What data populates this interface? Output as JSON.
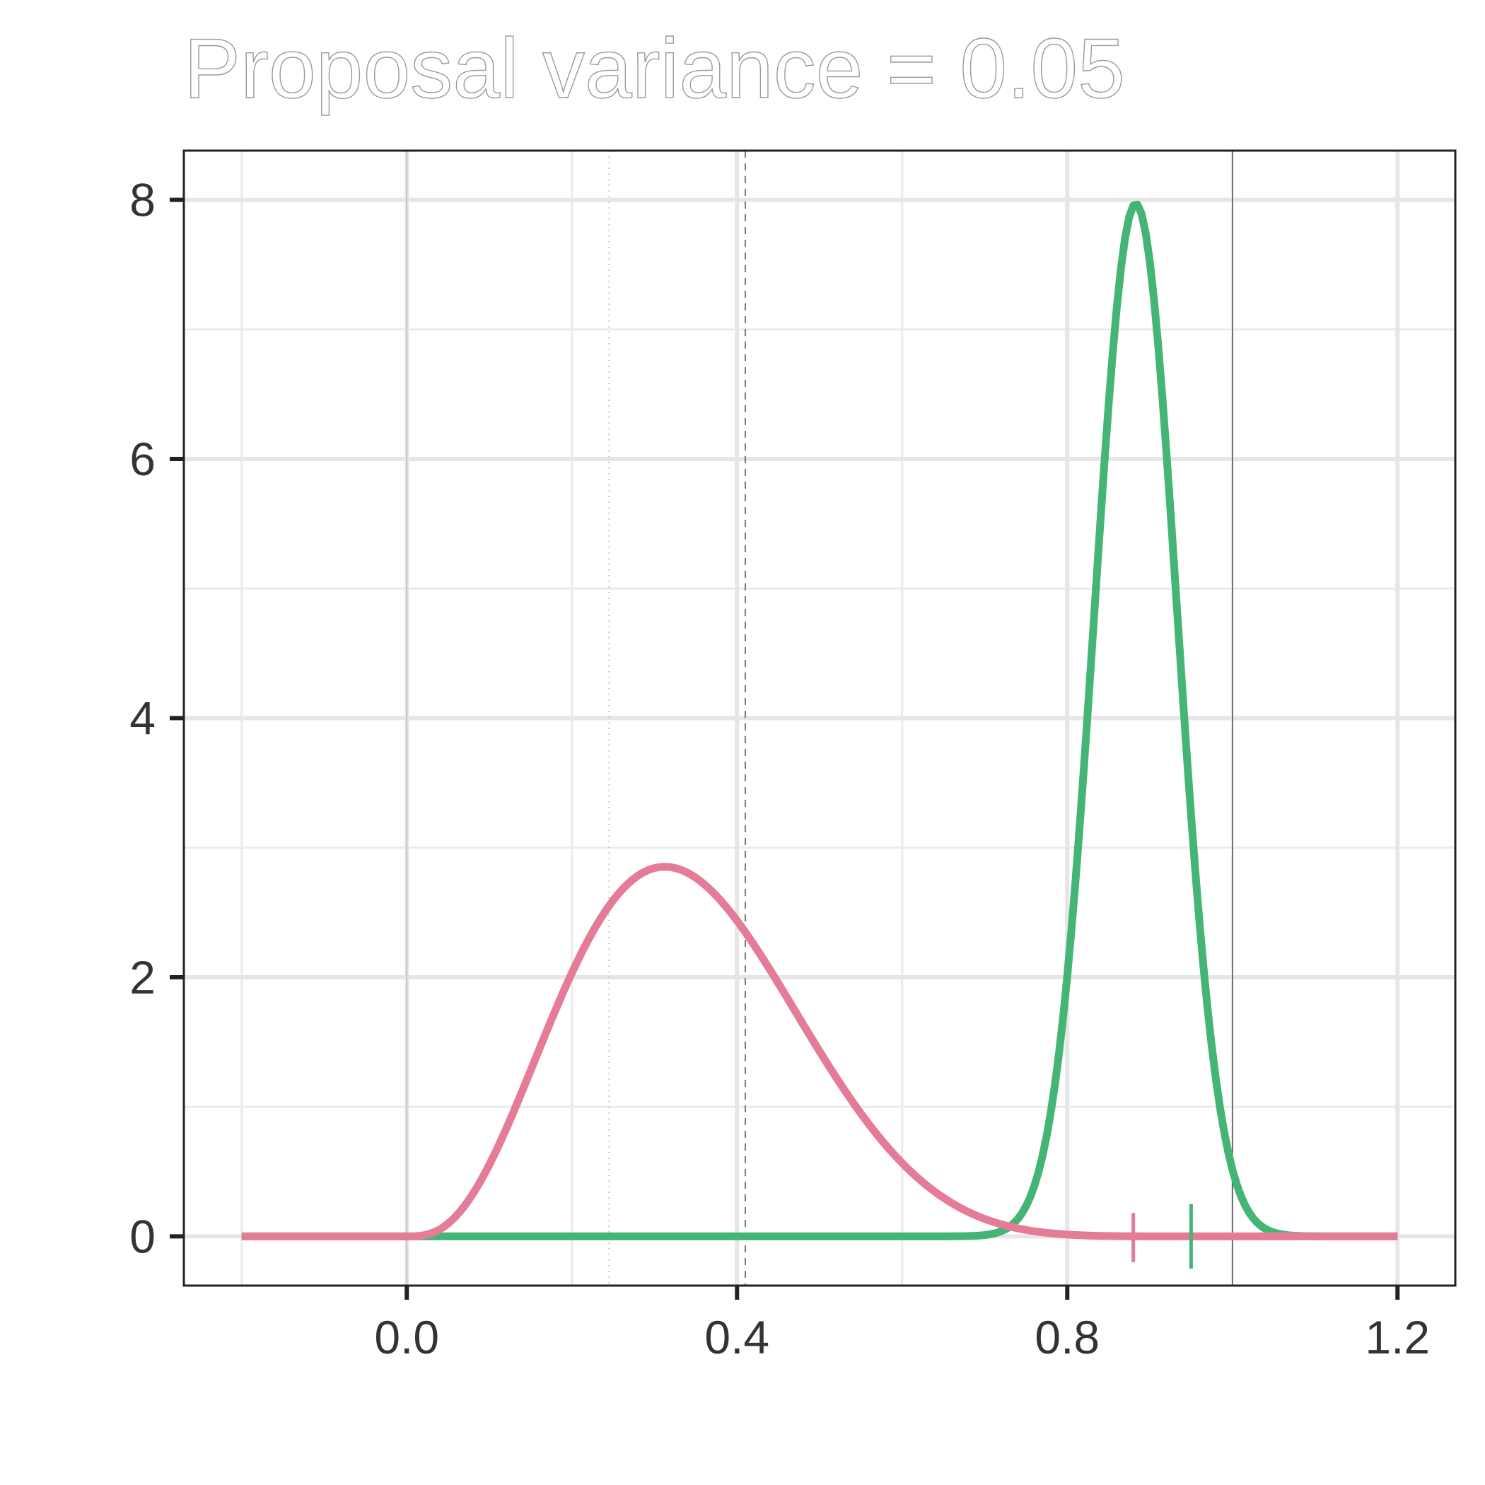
{
  "chart_data": {
    "type": "line",
    "title": "Proposal variance = 0.05",
    "xlabel": "",
    "ylabel": "",
    "xlim": [
      -0.27,
      1.27
    ],
    "ylim": [
      -0.38,
      8.38
    ],
    "x_ticks": [
      0.0,
      0.4,
      0.8,
      1.2
    ],
    "x_tick_labels": [
      "0.0",
      "0.4",
      "0.8",
      "1.2"
    ],
    "y_ticks": [
      0,
      2,
      4,
      6,
      8
    ],
    "y_tick_labels": [
      "0",
      "2",
      "4",
      "6",
      "8"
    ],
    "grid": true,
    "legend": "none",
    "series": [
      {
        "color": "#e47c98",
        "kind": "beta",
        "alpha": 4,
        "beta": 7.6,
        "x_range": [
          -0.2,
          1.2
        ]
      },
      {
        "color": "#45b575",
        "kind": "gaussian",
        "mean": 0.883,
        "sd": 0.05,
        "peak": 7.97,
        "x_range": [
          -0.2,
          1.2
        ]
      }
    ],
    "vertical_lines": [
      {
        "x": 0.0,
        "style": "solid",
        "color": "#bdbdbd"
      },
      {
        "x": 1.0,
        "style": "solid",
        "color": "#555555"
      },
      {
        "x": 0.245,
        "style": "dotted",
        "color": "#bdbdbd"
      },
      {
        "x": 0.41,
        "style": "dashed",
        "color": "#555555"
      }
    ],
    "tick_marks": [
      {
        "x": 0.88,
        "color": "#e47c98",
        "y_from": -0.2,
        "y_to": 0.18
      },
      {
        "x": 0.95,
        "color": "#45b575",
        "y_from": -0.25,
        "y_to": 0.25
      }
    ]
  }
}
